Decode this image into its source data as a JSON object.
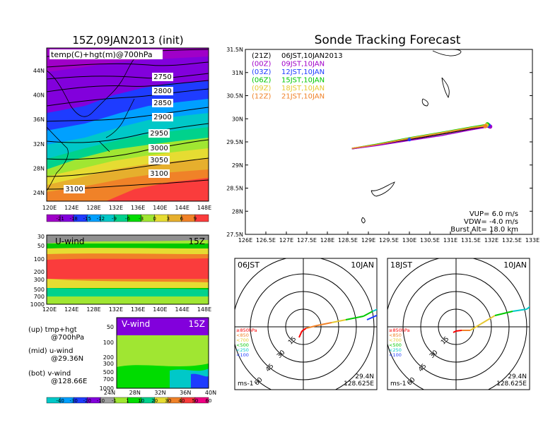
{
  "left_main": {
    "title": "15Z,09JAN2013 (init)",
    "field_label": "temp(C)+hgt(m)@700hPa",
    "lat_labels": [
      "44N",
      "40N",
      "36N",
      "32N",
      "28N",
      "24N"
    ],
    "lon_labels": [
      "120E",
      "124E",
      "128E",
      "132E",
      "136E",
      "140E",
      "144E",
      "148E"
    ],
    "contour_labels": [
      "2750",
      "2800",
      "2850",
      "2900",
      "2950",
      "3000",
      "3050",
      "3100",
      "3100"
    ],
    "temp_colorbar": [
      "-21",
      "-18",
      "-15",
      "-12",
      "-9",
      "-6",
      "-3",
      "0",
      "3",
      "6",
      "9"
    ],
    "temp_colors": [
      "#a000c8",
      "#8200dc",
      "#1e3cff",
      "#00a0ff",
      "#00c8c8",
      "#00d28c",
      "#00dc00",
      "#a0e632",
      "#e6dc32",
      "#e6af2d",
      "#f08228",
      "#fa3c3c"
    ]
  },
  "uwind": {
    "label": "U-wind",
    "time": "15Z",
    "p_labels": [
      "30",
      "50",
      "100",
      "200",
      "300",
      "500",
      "700",
      "1000"
    ],
    "lon_labels": [
      "120E",
      "124E",
      "128E",
      "132E",
      "136E",
      "140E",
      "144E",
      "148E"
    ]
  },
  "vwind": {
    "label": "V-wind",
    "time": "15Z",
    "p_labels": [
      "50",
      "100",
      "200",
      "300",
      "500",
      "700",
      "1000"
    ],
    "lat_labels": [
      "24N",
      "28N",
      "32N",
      "36N",
      "40N"
    ]
  },
  "legend": {
    "up": "(up) tmp+hgt",
    "up2": "@700hPa",
    "mid": "(mid) u-wind",
    "mid2": "@29.36N",
    "bot": "(bot) v-wind",
    "bot2": "@128.66E"
  },
  "wind_colorbar": {
    "labels": [
      "-40",
      "-30",
      "-20",
      "-10",
      "-1",
      "1",
      "10",
      "20",
      "30",
      "40",
      "50",
      "60"
    ],
    "colors": [
      "#00c8c8",
      "#00a0ff",
      "#1e3cff",
      "#8200dc",
      "#a0a0a0",
      "#a0e632",
      "#00dc00",
      "#00d28c",
      "#e6dc32",
      "#f08228",
      "#fa3c3c",
      "#f00082"
    ]
  },
  "track": {
    "title": "Sonde Tracking Forecast",
    "lat_labels": [
      "31.5N",
      "31N",
      "30.5N",
      "30N",
      "29.5N",
      "29N",
      "28.5N",
      "28N",
      "27.5N"
    ],
    "lon_labels": [
      "126E",
      "126.5E",
      "127E",
      "127.5E",
      "128E",
      "128.5E",
      "129E",
      "129.5E",
      "130E",
      "130.5E",
      "131E",
      "131.5E",
      "132E",
      "132.5E",
      "133E"
    ],
    "runs": [
      {
        "time": "(21Z)",
        "label": "06JST,10JAN2013",
        "color": "#000000"
      },
      {
        "time": "(00Z)",
        "label": "09JST,10JAN",
        "color": "#a000c8"
      },
      {
        "time": "(03Z)",
        "label": "12JST,10JAN",
        "color": "#1e3cff"
      },
      {
        "time": "(06Z)",
        "label": "15JST,10JAN",
        "color": "#00c800"
      },
      {
        "time": "(09Z)",
        "label": "18JST,10JAN",
        "color": "#e6c832"
      },
      {
        "time": "(12Z)",
        "label": "21JST,10JAN",
        "color": "#f08228"
      }
    ],
    "vup": "VUP= 6.0 m/s",
    "vdw": "VDW= -4.0 m/s",
    "burst": "Burst Alt= 18.0 km"
  },
  "hodo_left": {
    "time": "06JST",
    "date": "10JAN",
    "lat": "29.4N",
    "lon": "128.625E",
    "unit": "ms-1"
  },
  "hodo_right": {
    "time": "18JST",
    "date": "10JAN",
    "lat": "29.4N",
    "lon": "128.625E",
    "unit": "ms-1"
  },
  "hodo_rings": [
    "15",
    "30",
    "45",
    "60"
  ],
  "hodo_levels": [
    {
      "label": "≥850hPa",
      "color": "#fa0000"
    },
    {
      "label": "<850",
      "color": "#f08228"
    },
    {
      "label": "<700",
      "color": "#e6c832"
    },
    {
      "label": "<500",
      "color": "#00c800"
    },
    {
      "label": "<250",
      "color": "#00c8c8"
    },
    {
      "label": "<100",
      "color": "#1e3cff"
    }
  ],
  "chart_data": [
    {
      "type": "line",
      "title": "Sonde Tracking Forecast",
      "xlabel": "",
      "ylabel": "",
      "xlim": [
        126,
        133
      ],
      "ylim": [
        27.5,
        31.5
      ],
      "series": [
        {
          "name": "(21Z) 06JST,10JAN2013",
          "x": [
            128.6,
            129.2,
            130.0,
            130.8,
            131.5,
            131.95
          ],
          "y": [
            29.35,
            29.43,
            29.55,
            29.67,
            29.78,
            29.84
          ]
        },
        {
          "name": "(00Z) 09JST,10JAN",
          "x": [
            128.6,
            129.2,
            130.0,
            130.8,
            131.5,
            131.97
          ],
          "y": [
            29.35,
            29.42,
            29.53,
            29.64,
            29.76,
            29.83
          ]
        },
        {
          "name": "(03Z) 12JST,10JAN",
          "x": [
            128.6,
            129.2,
            130.0,
            130.8,
            131.5,
            131.93
          ],
          "y": [
            29.36,
            29.44,
            29.57,
            29.69,
            29.8,
            29.86
          ]
        },
        {
          "name": "(06Z) 15JST,10JAN",
          "x": [
            128.6,
            129.2,
            130.0,
            130.8,
            131.5,
            131.9
          ],
          "y": [
            29.36,
            29.45,
            29.59,
            29.71,
            29.82,
            29.88
          ]
        },
        {
          "name": "(09Z) 18JST,10JAN",
          "x": [
            128.6,
            129.2,
            130.0,
            130.8,
            131.5,
            131.88
          ],
          "y": [
            29.36,
            29.44,
            29.58,
            29.7,
            29.81,
            29.86
          ]
        },
        {
          "name": "(12Z) 21JST,10JAN",
          "x": [
            128.6,
            129.2,
            130.0,
            130.8,
            131.5,
            131.85
          ],
          "y": [
            29.36,
            29.44,
            29.57,
            29.69,
            29.8,
            29.84
          ]
        }
      ]
    }
  ]
}
